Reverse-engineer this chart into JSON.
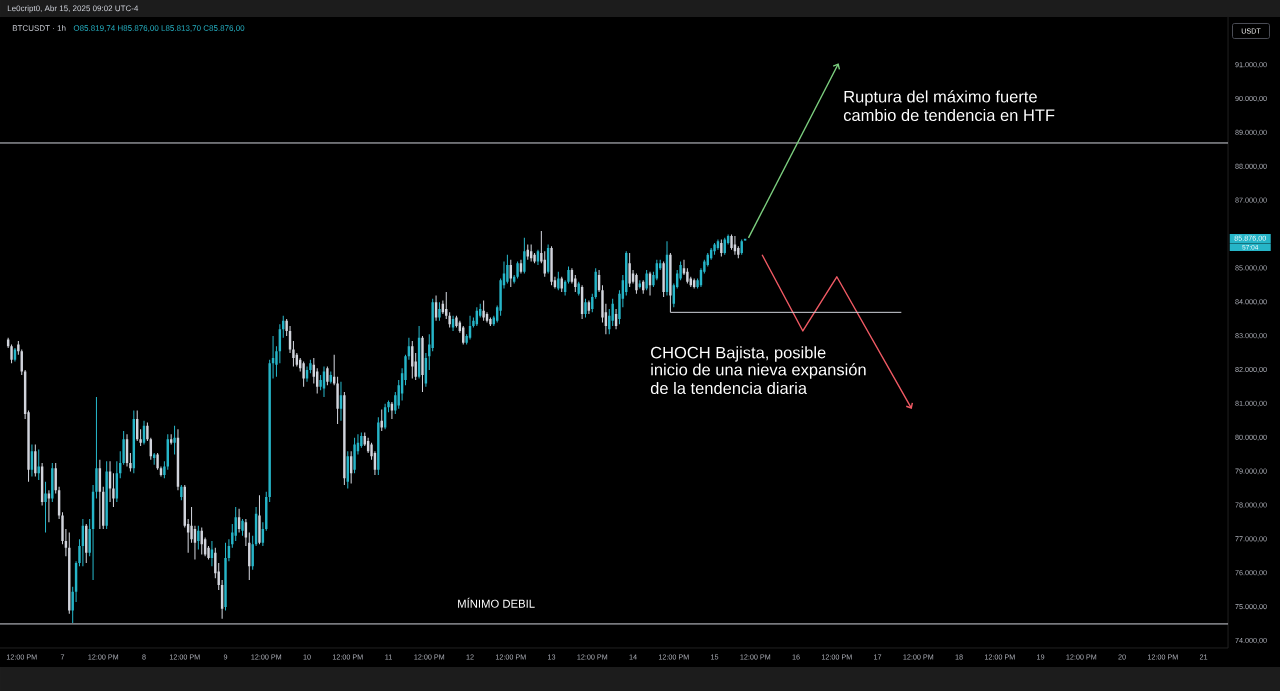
{
  "chart_data": {
    "type": "candlestick",
    "title": "BTCUSDT · 1h",
    "subtitle": "O85.819,74 H85.876,00 L85.813,70 C85.876,00",
    "ylabel": "USDT",
    "x": [
      "2025-04-06T08:00",
      "2025-04-06T09:00",
      "2025-04-06T10:00",
      "2025-04-06T11:00",
      "2025-04-06T12:00",
      "2025-04-06T13:00",
      "2025-04-06T14:00",
      "2025-04-06T15:00",
      "2025-04-06T16:00",
      "2025-04-06T17:00",
      "2025-04-06T18:00",
      "2025-04-06T19:00",
      "2025-04-06T20:00",
      "2025-04-06T21:00",
      "2025-04-06T22:00",
      "2025-04-06T23:00",
      "2025-04-07T00:00",
      "2025-04-07T01:00",
      "2025-04-07T02:00",
      "2025-04-07T03:00",
      "2025-04-07T04:00",
      "2025-04-07T05:00",
      "2025-04-07T06:00",
      "2025-04-07T07:00",
      "2025-04-07T08:00",
      "2025-04-07T09:00",
      "2025-04-07T10:00",
      "2025-04-07T11:00",
      "2025-04-07T12:00",
      "2025-04-07T13:00",
      "2025-04-07T14:00",
      "2025-04-07T15:00",
      "2025-04-07T16:00",
      "2025-04-07T17:00",
      "2025-04-07T18:00",
      "2025-04-07T19:00",
      "2025-04-07T20:00",
      "2025-04-07T21:00",
      "2025-04-07T22:00",
      "2025-04-07T23:00",
      "2025-04-08T00:00",
      "2025-04-08T01:00",
      "2025-04-08T02:00",
      "2025-04-08T03:00",
      "2025-04-08T04:00",
      "2025-04-08T05:00",
      "2025-04-08T06:00",
      "2025-04-08T07:00",
      "2025-04-08T08:00",
      "2025-04-08T09:00",
      "2025-04-08T10:00",
      "2025-04-08T11:00",
      "2025-04-08T12:00",
      "2025-04-08T13:00",
      "2025-04-08T14:00",
      "2025-04-08T15:00",
      "2025-04-08T16:00",
      "2025-04-08T17:00",
      "2025-04-08T18:00",
      "2025-04-08T19:00",
      "2025-04-08T20:00",
      "2025-04-08T21:00",
      "2025-04-08T22:00",
      "2025-04-08T23:00",
      "2025-04-09T00:00",
      "2025-04-09T01:00",
      "2025-04-09T02:00",
      "2025-04-09T03:00",
      "2025-04-09T04:00",
      "2025-04-09T05:00",
      "2025-04-09T06:00",
      "2025-04-09T07:00",
      "2025-04-09T08:00",
      "2025-04-09T09:00",
      "2025-04-09T10:00",
      "2025-04-09T11:00",
      "2025-04-09T12:00",
      "2025-04-09T13:00",
      "2025-04-09T14:00",
      "2025-04-09T15:00",
      "2025-04-09T16:00",
      "2025-04-09T17:00",
      "2025-04-09T18:00",
      "2025-04-09T19:00",
      "2025-04-09T20:00",
      "2025-04-09T21:00",
      "2025-04-09T22:00",
      "2025-04-09T23:00",
      "2025-04-10T00:00",
      "2025-04-10T01:00",
      "2025-04-10T02:00",
      "2025-04-10T03:00",
      "2025-04-10T04:00",
      "2025-04-10T05:00",
      "2025-04-10T06:00",
      "2025-04-10T07:00",
      "2025-04-10T08:00",
      "2025-04-10T09:00",
      "2025-04-10T10:00",
      "2025-04-10T11:00",
      "2025-04-10T12:00",
      "2025-04-10T13:00",
      "2025-04-10T14:00",
      "2025-04-10T15:00",
      "2025-04-10T16:00",
      "2025-04-10T17:00",
      "2025-04-10T18:00",
      "2025-04-10T19:00",
      "2025-04-10T20:00",
      "2025-04-10T21:00",
      "2025-04-10T22:00",
      "2025-04-10T23:00",
      "2025-04-11T00:00",
      "2025-04-11T01:00",
      "2025-04-11T02:00",
      "2025-04-11T03:00",
      "2025-04-11T04:00",
      "2025-04-11T05:00",
      "2025-04-11T06:00",
      "2025-04-11T07:00",
      "2025-04-11T08:00",
      "2025-04-11T09:00",
      "2025-04-11T10:00",
      "2025-04-11T11:00",
      "2025-04-11T12:00",
      "2025-04-11T13:00",
      "2025-04-11T14:00",
      "2025-04-11T15:00",
      "2025-04-11T16:00",
      "2025-04-11T17:00",
      "2025-04-11T18:00",
      "2025-04-11T19:00",
      "2025-04-11T20:00",
      "2025-04-11T21:00",
      "2025-04-11T22:00",
      "2025-04-11T23:00",
      "2025-04-12T00:00",
      "2025-04-12T01:00",
      "2025-04-12T02:00",
      "2025-04-12T03:00",
      "2025-04-12T04:00",
      "2025-04-12T05:00",
      "2025-04-12T06:00",
      "2025-04-12T07:00",
      "2025-04-12T08:00",
      "2025-04-12T09:00",
      "2025-04-12T10:00",
      "2025-04-12T11:00",
      "2025-04-12T12:00",
      "2025-04-12T13:00",
      "2025-04-12T14:00",
      "2025-04-12T15:00",
      "2025-04-12T16:00",
      "2025-04-12T17:00",
      "2025-04-12T18:00",
      "2025-04-12T19:00",
      "2025-04-12T20:00",
      "2025-04-12T21:00",
      "2025-04-12T22:00",
      "2025-04-12T23:00",
      "2025-04-13T00:00",
      "2025-04-13T01:00",
      "2025-04-13T02:00",
      "2025-04-13T03:00",
      "2025-04-13T04:00",
      "2025-04-13T05:00",
      "2025-04-13T06:00",
      "2025-04-13T07:00",
      "2025-04-13T08:00",
      "2025-04-13T09:00",
      "2025-04-13T10:00",
      "2025-04-13T11:00",
      "2025-04-13T12:00",
      "2025-04-13T13:00",
      "2025-04-13T14:00",
      "2025-04-13T15:00",
      "2025-04-13T16:00",
      "2025-04-13T17:00",
      "2025-04-13T18:00",
      "2025-04-13T19:00",
      "2025-04-13T20:00",
      "2025-04-13T21:00",
      "2025-04-13T22:00",
      "2025-04-13T23:00",
      "2025-04-14T00:00",
      "2025-04-14T01:00",
      "2025-04-14T02:00",
      "2025-04-14T03:00",
      "2025-04-14T04:00",
      "2025-04-14T05:00",
      "2025-04-14T06:00",
      "2025-04-14T07:00",
      "2025-04-14T08:00",
      "2025-04-14T09:00",
      "2025-04-14T10:00",
      "2025-04-14T11:00",
      "2025-04-14T12:00",
      "2025-04-14T13:00",
      "2025-04-14T14:00",
      "2025-04-14T15:00",
      "2025-04-14T16:00",
      "2025-04-14T17:00",
      "2025-04-14T18:00",
      "2025-04-14T19:00",
      "2025-04-14T20:00",
      "2025-04-14T21:00",
      "2025-04-14T22:00",
      "2025-04-14T23:00",
      "2025-04-15T00:00",
      "2025-04-15T01:00",
      "2025-04-15T02:00",
      "2025-04-15T03:00",
      "2025-04-15T04:00",
      "2025-04-15T05:00",
      "2025-04-15T06:00",
      "2025-04-15T07:00",
      "2025-04-15T08:00",
      "2025-04-15T09:00"
    ],
    "ohlc": [
      [
        82900,
        82950,
        82650,
        82700
      ],
      [
        82700,
        82750,
        82200,
        82300
      ],
      [
        82300,
        82650,
        82250,
        82600
      ],
      [
        82750,
        82850,
        82450,
        82550
      ],
      [
        82550,
        82600,
        81850,
        81950
      ],
      [
        81950,
        82000,
        80550,
        80700
      ],
      [
        80750,
        80800,
        78700,
        79050
      ],
      [
        79050,
        79800,
        78850,
        79600
      ],
      [
        79600,
        79800,
        78850,
        78950
      ],
      [
        78950,
        79650,
        78750,
        79150
      ],
      [
        79150,
        79250,
        78000,
        78100
      ],
      [
        78100,
        78700,
        77200,
        78350
      ],
      [
        78350,
        78450,
        77500,
        78200
      ],
      [
        78200,
        79250,
        78100,
        79100
      ],
      [
        79100,
        79250,
        78350,
        78450
      ],
      [
        78450,
        78550,
        77600,
        77700
      ],
      [
        77700,
        77800,
        76850,
        76950
      ],
      [
        76950,
        77300,
        76500,
        76750
      ],
      [
        76750,
        77200,
        74800,
        74900
      ],
      [
        74900,
        75600,
        74530,
        75450
      ],
      [
        75450,
        76350,
        75150,
        76300
      ],
      [
        76300,
        77000,
        76200,
        76800
      ],
      [
        76800,
        77600,
        76200,
        77400
      ],
      [
        77400,
        77450,
        76300,
        76600
      ],
      [
        76600,
        77600,
        76500,
        77300
      ],
      [
        77300,
        78600,
        75800,
        78400
      ],
      [
        78400,
        81200,
        78200,
        79100
      ],
      [
        79100,
        79350,
        77300,
        78400
      ],
      [
        78400,
        78550,
        77300,
        77400
      ],
      [
        77400,
        79300,
        77300,
        79000
      ],
      [
        79000,
        79300,
        78100,
        78500
      ],
      [
        78500,
        78950,
        77950,
        78200
      ],
      [
        78200,
        79300,
        78100,
        78950
      ],
      [
        78950,
        79600,
        78800,
        79250
      ],
      [
        79250,
        80200,
        79200,
        79950
      ],
      [
        79950,
        80100,
        79150,
        79250
      ],
      [
        79250,
        79550,
        79000,
        79100
      ],
      [
        79100,
        80800,
        78950,
        80550
      ],
      [
        80550,
        80800,
        79900,
        79950
      ],
      [
        79950,
        80250,
        79750,
        79850
      ],
      [
        79850,
        80500,
        79800,
        80350
      ],
      [
        80350,
        80450,
        79900,
        79950
      ],
      [
        79950,
        80000,
        79350,
        79450
      ],
      [
        79400,
        79550,
        79200,
        79500
      ],
      [
        79500,
        79550,
        79050,
        79100
      ],
      [
        79100,
        79150,
        78850,
        78900
      ],
      [
        78900,
        79300,
        78800,
        79150
      ],
      [
        79150,
        80100,
        79050,
        79950
      ],
      [
        79950,
        80100,
        79800,
        79850
      ],
      [
        79850,
        80350,
        79500,
        80000
      ],
      [
        80000,
        80250,
        78450,
        78550
      ],
      [
        78250,
        78600,
        78150,
        78550
      ],
      [
        78550,
        78600,
        77350,
        77400
      ],
      [
        77450,
        77600,
        76600,
        77200
      ],
      [
        77400,
        77950,
        76900,
        77000
      ],
      [
        77300,
        77400,
        76400,
        76900
      ],
      [
        76950,
        77400,
        76700,
        77250
      ],
      [
        77250,
        77350,
        76550,
        76850
      ],
      [
        77000,
        77050,
        76500,
        76550
      ],
      [
        76750,
        76800,
        76400,
        76450
      ],
      [
        76450,
        76950,
        76200,
        76700
      ],
      [
        76600,
        76750,
        75850,
        76000
      ],
      [
        76050,
        76300,
        75500,
        75650
      ],
      [
        75650,
        75800,
        74650,
        74950
      ],
      [
        75000,
        76900,
        74900,
        76450
      ],
      [
        76450,
        77000,
        76350,
        76800
      ],
      [
        76850,
        77450,
        76750,
        77200
      ],
      [
        77100,
        77950,
        76950,
        77650
      ],
      [
        77650,
        77900,
        77200,
        77300
      ],
      [
        77250,
        77600,
        77100,
        77550
      ],
      [
        77500,
        77600,
        76800,
        77050
      ],
      [
        76900,
        77200,
        75800,
        76200
      ],
      [
        76200,
        77100,
        76100,
        76850
      ],
      [
        76850,
        77950,
        76800,
        77750
      ],
      [
        77700,
        78300,
        76850,
        76900
      ],
      [
        76900,
        77500,
        76800,
        77300
      ],
      [
        77300,
        78400,
        77250,
        78250
      ],
      [
        78250,
        82300,
        78100,
        82200
      ],
      [
        82200,
        83000,
        81750,
        82350
      ],
      [
        82150,
        82700,
        81800,
        82550
      ],
      [
        82550,
        83350,
        82200,
        83200
      ],
      [
        83200,
        83600,
        82950,
        83450
      ],
      [
        83450,
        83500,
        83000,
        83150
      ],
      [
        83150,
        83300,
        82500,
        82600
      ],
      [
        82600,
        82850,
        82100,
        82350
      ],
      [
        82450,
        82500,
        82100,
        82150
      ],
      [
        82300,
        82350,
        81950,
        82050
      ],
      [
        82200,
        82250,
        81500,
        81750
      ],
      [
        81750,
        82100,
        81650,
        82000
      ],
      [
        82000,
        82300,
        81900,
        82200
      ],
      [
        82150,
        82350,
        81600,
        81800
      ],
      [
        81950,
        82050,
        81300,
        81500
      ],
      [
        81500,
        81850,
        81400,
        81700
      ],
      [
        81450,
        82100,
        81200,
        81950
      ],
      [
        82050,
        82100,
        81550,
        81650
      ],
      [
        81650,
        81950,
        81600,
        81850
      ],
      [
        81800,
        82450,
        81550,
        81600
      ],
      [
        81600,
        81800,
        80400,
        80850
      ],
      [
        80850,
        81650,
        80500,
        81250
      ],
      [
        81250,
        81350,
        78600,
        78800
      ],
      [
        78700,
        79600,
        78500,
        79450
      ],
      [
        79450,
        79600,
        78650,
        78950
      ],
      [
        79050,
        80000,
        78950,
        79800
      ],
      [
        79600,
        80100,
        79500,
        79850
      ],
      [
        79750,
        80150,
        79700,
        80050
      ],
      [
        80050,
        80150,
        79750,
        79800
      ],
      [
        79900,
        80000,
        79550,
        79600
      ],
      [
        79800,
        79850,
        79350,
        79450
      ],
      [
        79550,
        79600,
        78900,
        79050
      ],
      [
        79050,
        80600,
        78900,
        80450
      ],
      [
        80500,
        80830,
        80200,
        80300
      ],
      [
        80300,
        81000,
        80250,
        80900
      ],
      [
        80900,
        81100,
        80750,
        81050
      ],
      [
        81000,
        81050,
        80550,
        80800
      ],
      [
        80800,
        81350,
        80700,
        81250
      ],
      [
        80950,
        81700,
        80850,
        81550
      ],
      [
        81300,
        82050,
        81100,
        81900
      ],
      [
        81700,
        82450,
        81550,
        82400
      ],
      [
        82400,
        82950,
        82300,
        82700
      ],
      [
        82700,
        82850,
        81750,
        82100
      ],
      [
        82250,
        82500,
        81700,
        81800
      ],
      [
        81800,
        83300,
        81750,
        82950
      ],
      [
        82950,
        83000,
        81350,
        81850
      ],
      [
        81600,
        82500,
        81500,
        82350
      ],
      [
        82400,
        83050,
        82000,
        82750
      ],
      [
        82650,
        84100,
        82550,
        84000
      ],
      [
        84000,
        84200,
        83450,
        83550
      ],
      [
        83550,
        84000,
        83450,
        83800
      ],
      [
        83950,
        84050,
        83650,
        83700
      ],
      [
        83800,
        84300,
        83500,
        83600
      ],
      [
        83600,
        83700,
        83250,
        83350
      ],
      [
        83250,
        83600,
        83150,
        83500
      ],
      [
        83550,
        83600,
        83250,
        83300
      ],
      [
        83400,
        83450,
        83100,
        83150
      ],
      [
        83250,
        83300,
        82750,
        82800
      ],
      [
        82800,
        83050,
        82750,
        83000
      ],
      [
        82950,
        83600,
        82900,
        83300
      ],
      [
        83300,
        83550,
        83250,
        83450
      ],
      [
        83350,
        83850,
        83300,
        83750
      ],
      [
        83600,
        83950,
        83550,
        83800
      ],
      [
        83750,
        84050,
        83450,
        83550
      ],
      [
        83650,
        83700,
        83400,
        83450
      ],
      [
        83500,
        83550,
        83300,
        83350
      ],
      [
        83350,
        83600,
        83300,
        83550
      ],
      [
        83450,
        83900,
        83400,
        83850
      ],
      [
        83750,
        84700,
        83600,
        84650
      ],
      [
        84500,
        85200,
        84400,
        84850
      ],
      [
        84600,
        85400,
        84550,
        85100
      ],
      [
        85100,
        85250,
        84450,
        84700
      ],
      [
        84600,
        84800,
        84550,
        84750
      ],
      [
        84750,
        85200,
        84700,
        85150
      ],
      [
        85150,
        85250,
        84850,
        84900
      ],
      [
        84900,
        85900,
        84850,
        85500
      ],
      [
        85550,
        85700,
        85250,
        85350
      ],
      [
        85500,
        85700,
        85200,
        85300
      ],
      [
        85400,
        85450,
        85150,
        85200
      ],
      [
        85200,
        85550,
        85100,
        85500
      ],
      [
        85450,
        86100,
        85150,
        85200
      ],
      [
        85250,
        85500,
        84750,
        84850
      ],
      [
        84900,
        85700,
        84850,
        85600
      ],
      [
        85600,
        85650,
        84500,
        84600
      ],
      [
        84650,
        84750,
        84400,
        84450
      ],
      [
        84400,
        84900,
        84350,
        84700
      ],
      [
        84700,
        84750,
        84300,
        84400
      ],
      [
        84300,
        84650,
        84200,
        84600
      ],
      [
        84600,
        85050,
        84550,
        84950
      ],
      [
        84950,
        85000,
        84550,
        84600
      ],
      [
        84700,
        84800,
        84300,
        84450
      ],
      [
        84250,
        84600,
        84200,
        84550
      ],
      [
        84450,
        84500,
        83500,
        83650
      ],
      [
        83650,
        84100,
        83550,
        84000
      ],
      [
        84000,
        84050,
        83650,
        83750
      ],
      [
        83800,
        84250,
        83700,
        84150
      ],
      [
        84150,
        85000,
        84100,
        84900
      ],
      [
        84800,
        84950,
        84300,
        84350
      ],
      [
        84350,
        84500,
        83400,
        83550
      ],
      [
        83700,
        83950,
        83050,
        83300
      ],
      [
        83200,
        83800,
        83050,
        83600
      ],
      [
        83450,
        84100,
        83300,
        83950
      ],
      [
        83650,
        83800,
        83200,
        83300
      ],
      [
        83500,
        84350,
        83350,
        84250
      ],
      [
        84100,
        84800,
        83850,
        84650
      ],
      [
        84300,
        85500,
        84200,
        85450
      ],
      [
        85150,
        85450,
        84450,
        84550
      ],
      [
        84850,
        84950,
        84550,
        84600
      ],
      [
        84800,
        84850,
        84250,
        84350
      ],
      [
        84450,
        84650,
        84400,
        84550
      ],
      [
        84600,
        84650,
        84250,
        84350
      ],
      [
        84400,
        84950,
        84350,
        84850
      ],
      [
        84850,
        84900,
        84200,
        84500
      ],
      [
        84500,
        84900,
        84450,
        84800
      ],
      [
        84700,
        85250,
        84650,
        85150
      ],
      [
        85000,
        85250,
        84950,
        85150
      ],
      [
        85150,
        85200,
        84150,
        84300
      ],
      [
        84300,
        85800,
        84200,
        85400
      ],
      [
        85400,
        85450,
        83700,
        84200
      ],
      [
        83950,
        84550,
        83850,
        84500
      ],
      [
        84450,
        84950,
        84400,
        84850
      ],
      [
        84700,
        85200,
        84650,
        85100
      ],
      [
        85000,
        85250,
        84800,
        84850
      ],
      [
        84900,
        85000,
        84550,
        84600
      ],
      [
        84700,
        84750,
        84450,
        84500
      ],
      [
        84650,
        84700,
        84400,
        84450
      ],
      [
        84450,
        84700,
        84400,
        84650
      ],
      [
        84500,
        85000,
        84450,
        84950
      ],
      [
        84900,
        85250,
        84850,
        85200
      ],
      [
        85100,
        85450,
        85050,
        85400
      ],
      [
        85300,
        85600,
        85250,
        85550
      ],
      [
        85500,
        85750,
        85400,
        85700
      ],
      [
        85600,
        85850,
        85550,
        85800
      ],
      [
        85750,
        85850,
        85350,
        85450
      ],
      [
        85450,
        85900,
        85400,
        85850
      ],
      [
        85750,
        86000,
        85700,
        85950
      ],
      [
        85950,
        86000,
        85550,
        85600
      ],
      [
        85700,
        85950,
        85400,
        85500
      ],
      [
        85600,
        85650,
        85300,
        85400
      ],
      [
        85450,
        85850,
        85400,
        85800
      ],
      [
        85819.74,
        85876,
        85813.7,
        85876
      ]
    ],
    "colors": [
      "#d1d4dc",
      "#d1d4dc",
      "#26b5c8",
      "#d1d4dc",
      "#d1d4dc",
      "#d1d4dc",
      "#d1d4dc",
      "#26b5c8",
      "#d1d4dc",
      "#26b5c8",
      "#d1d4dc",
      "#26b5c8",
      "#d1d4dc",
      "#26b5c8",
      "#d1d4dc",
      "#d1d4dc",
      "#d1d4dc",
      "#d1d4dc",
      "#d1d4dc",
      "#26b5c8",
      "#26b5c8",
      "#26b5c8",
      "#26b5c8",
      "#d1d4dc",
      "#26b5c8",
      "#26b5c8",
      "#26b5c8",
      "#d1d4dc",
      "#d1d4dc",
      "#26b5c8",
      "#d1d4dc",
      "#d1d4dc",
      "#26b5c8",
      "#26b5c8",
      "#26b5c8",
      "#d1d4dc",
      "#d1d4dc",
      "#26b5c8",
      "#d1d4dc",
      "#d1d4dc",
      "#26b5c8",
      "#d1d4dc",
      "#d1d4dc",
      "#26b5c8",
      "#d1d4dc",
      "#d1d4dc",
      "#26b5c8",
      "#26b5c8",
      "#d1d4dc",
      "#26b5c8",
      "#d1d4dc",
      "#26b5c8",
      "#d1d4dc",
      "#d1d4dc",
      "#d1d4dc",
      "#d1d4dc",
      "#26b5c8",
      "#d1d4dc",
      "#d1d4dc",
      "#d1d4dc",
      "#26b5c8",
      "#d1d4dc",
      "#d1d4dc",
      "#d1d4dc",
      "#26b5c8",
      "#26b5c8",
      "#26b5c8",
      "#26b5c8",
      "#d1d4dc",
      "#26b5c8",
      "#d1d4dc",
      "#d1d4dc",
      "#26b5c8",
      "#26b5c8",
      "#d1d4dc",
      "#26b5c8",
      "#26b5c8",
      "#26b5c8",
      "#26b5c8",
      "#26b5c8",
      "#26b5c8",
      "#26b5c8",
      "#d1d4dc",
      "#d1d4dc",
      "#d1d4dc",
      "#d1d4dc",
      "#d1d4dc",
      "#d1d4dc",
      "#26b5c8",
      "#26b5c8",
      "#d1d4dc",
      "#d1d4dc",
      "#26b5c8",
      "#26b5c8",
      "#d1d4dc",
      "#26b5c8",
      "#d1d4dc",
      "#d1d4dc",
      "#26b5c8",
      "#d1d4dc",
      "#26b5c8",
      "#d1d4dc",
      "#26b5c8",
      "#26b5c8",
      "#26b5c8",
      "#d1d4dc",
      "#d1d4dc",
      "#d1d4dc",
      "#d1d4dc",
      "#26b5c8",
      "#d1d4dc",
      "#26b5c8",
      "#26b5c8",
      "#d1d4dc",
      "#26b5c8",
      "#26b5c8",
      "#26b5c8",
      "#26b5c8",
      "#26b5c8",
      "#d1d4dc",
      "#d1d4dc",
      "#26b5c8",
      "#d1d4dc",
      "#26b5c8",
      "#26b5c8",
      "#26b5c8",
      "#d1d4dc",
      "#26b5c8",
      "#d1d4dc",
      "#d1d4dc",
      "#d1d4dc",
      "#26b5c8",
      "#d1d4dc",
      "#d1d4dc",
      "#d1d4dc",
      "#26b5c8",
      "#26b5c8",
      "#26b5c8",
      "#26b5c8",
      "#26b5c8",
      "#d1d4dc",
      "#d1d4dc",
      "#d1d4dc",
      "#26b5c8",
      "#26b5c8",
      "#26b5c8",
      "#26b5c8",
      "#26b5c8",
      "#d1d4dc",
      "#26b5c8",
      "#26b5c8",
      "#d1d4dc",
      "#26b5c8",
      "#d1d4dc",
      "#d1d4dc",
      "#d1d4dc",
      "#26b5c8",
      "#d1d4dc",
      "#d1d4dc",
      "#26b5c8",
      "#d1d4dc",
      "#d1d4dc",
      "#26b5c8",
      "#d1d4dc",
      "#26b5c8",
      "#26b5c8",
      "#d1d4dc",
      "#d1d4dc",
      "#26b5c8",
      "#d1d4dc",
      "#26b5c8",
      "#d1d4dc",
      "#26b5c8",
      "#26b5c8",
      "#d1d4dc",
      "#d1d4dc",
      "#d1d4dc",
      "#26b5c8",
      "#26b5c8",
      "#d1d4dc",
      "#26b5c8",
      "#26b5c8",
      "#26b5c8",
      "#d1d4dc",
      "#d1d4dc",
      "#d1d4dc",
      "#26b5c8",
      "#d1d4dc",
      "#26b5c8",
      "#d1d4dc",
      "#26b5c8",
      "#26b5c8",
      "#26b5c8",
      "#d1d4dc",
      "#26b5c8",
      "#d1d4dc",
      "#26b5c8",
      "#26b5c8",
      "#26b5c8",
      "#d1d4dc",
      "#d1d4dc",
      "#d1d4dc",
      "#d1d4dc",
      "#26b5c8",
      "#26b5c8",
      "#26b5c8",
      "#26b5c8",
      "#26b5c8",
      "#26b5c8",
      "#26b5c8",
      "#d1d4dc",
      "#26b5c8",
      "#26b5c8",
      "#d1d4dc",
      "#d1d4dc",
      "#d1d4dc",
      "#26b5c8",
      "#26b5c8"
    ],
    "series": [
      {
        "type": "line",
        "color": "#7ccf7f",
        "x": [
          "2025-04-15T10:00",
          "2025-04-16T12:00"
        ],
        "values": [
          85900,
          90950
        ]
      },
      {
        "type": "line",
        "color": "#f05a64",
        "x": [
          "2025-04-15T14:00",
          "2025-04-16T02:00",
          "2025-04-16T12:00",
          "2025-04-17T09:30"
        ],
        "values": [
          85400,
          83150,
          84750,
          80950
        ]
      },
      {
        "type": "step",
        "color": "#d1d4dc",
        "x": [
          "2025-04-14T11:00",
          "2025-04-17T07:00"
        ],
        "values": [
          83700,
          83700
        ]
      }
    ],
    "ref_lines": [
      {
        "axis": "y",
        "value": 88700,
        "color": "#d1d4dc"
      },
      {
        "axis": "y",
        "value": 74500,
        "label": "MÍNIMO DEBIL",
        "color": "#d1d4dc"
      }
    ],
    "annotations": [
      "Le0cript0, Abr 15, 2025 09:02 UTC-4",
      "Ruptura del máximo fuerte",
      "cambio de tendencia en HTF",
      "CHOCH Bajista, posible",
      "inicio de una nieva expansión",
      "de la tendencia diaria",
      "85.876,00",
      "57:04"
    ],
    "xlim": [
      "2025-04-06T05:36",
      "2025-04-21T07:12"
    ],
    "xticks": [
      {
        "value": "2025-04-06T12:00",
        "label": "12:00 PM"
      },
      {
        "value": "2025-04-07",
        "label": "7"
      },
      {
        "value": "2025-04-07T12:00",
        "label": "12:00 PM"
      },
      {
        "value": "2025-04-08",
        "label": "8"
      },
      {
        "value": "2025-04-08T12:00",
        "label": "12:00 PM"
      },
      {
        "value": "2025-04-09",
        "label": "9"
      },
      {
        "value": "2025-04-09T12:00",
        "label": "12:00 PM"
      },
      {
        "value": "2025-04-10",
        "label": "10"
      },
      {
        "value": "2025-04-10T12:00",
        "label": "12:00 PM"
      },
      {
        "value": "2025-04-11",
        "label": "11"
      },
      {
        "value": "2025-04-11T12:00",
        "label": "12:00 PM"
      },
      {
        "value": "2025-04-12",
        "label": "12"
      },
      {
        "value": "2025-04-12T12:00",
        "label": "12:00 PM"
      },
      {
        "value": "2025-04-13",
        "label": "13"
      },
      {
        "value": "2025-04-13T12:00",
        "label": "12:00 PM"
      },
      {
        "value": "2025-04-14",
        "label": "14"
      },
      {
        "value": "2025-04-14T12:00",
        "label": "12:00 PM"
      },
      {
        "value": "2025-04-15",
        "label": "15"
      },
      {
        "value": "2025-04-15T12:00",
        "label": "12:00 PM"
      },
      {
        "value": "2025-04-16",
        "label": "16"
      },
      {
        "value": "2025-04-16T12:00",
        "label": "12:00 PM"
      },
      {
        "value": "2025-04-17",
        "label": "17"
      },
      {
        "value": "2025-04-17T12:00",
        "label": "12:00 PM"
      },
      {
        "value": "2025-04-18",
        "label": "18"
      },
      {
        "value": "2025-04-18T12:00",
        "label": "12:00 PM"
      },
      {
        "value": "2025-04-19",
        "label": "19"
      },
      {
        "value": "2025-04-19T12:00",
        "label": "12:00 PM"
      },
      {
        "value": "2025-04-20",
        "label": "20"
      },
      {
        "value": "2025-04-20T12:00",
        "label": "12:00 PM"
      },
      {
        "value": "2025-04-21",
        "label": "21"
      }
    ],
    "ylim": [
      73790,
      92420
    ],
    "yticks": [
      {
        "value": 74000,
        "label": "74.000,00"
      },
      {
        "value": 75000,
        "label": "75.000,00"
      },
      {
        "value": 76000,
        "label": "76.000,00"
      },
      {
        "value": 77000,
        "label": "77.000,00"
      },
      {
        "value": 78000,
        "label": "78.000,00"
      },
      {
        "value": 79000,
        "label": "79.000,00"
      },
      {
        "value": 80000,
        "label": "80.000,00"
      },
      {
        "value": 81000,
        "label": "81.000,00"
      },
      {
        "value": 82000,
        "label": "82.000,00"
      },
      {
        "value": 83000,
        "label": "83.000,00"
      },
      {
        "value": 84000,
        "label": "84.000,00"
      },
      {
        "value": 85000,
        "label": "85.000,00"
      },
      {
        "value": 87000,
        "label": "87.000,00"
      },
      {
        "value": 88000,
        "label": "88.000,00"
      },
      {
        "value": 89000,
        "label": "89.000,00"
      },
      {
        "value": 90000,
        "label": "90.000,00"
      },
      {
        "value": 91000,
        "label": "91.000,00"
      }
    ]
  }
}
